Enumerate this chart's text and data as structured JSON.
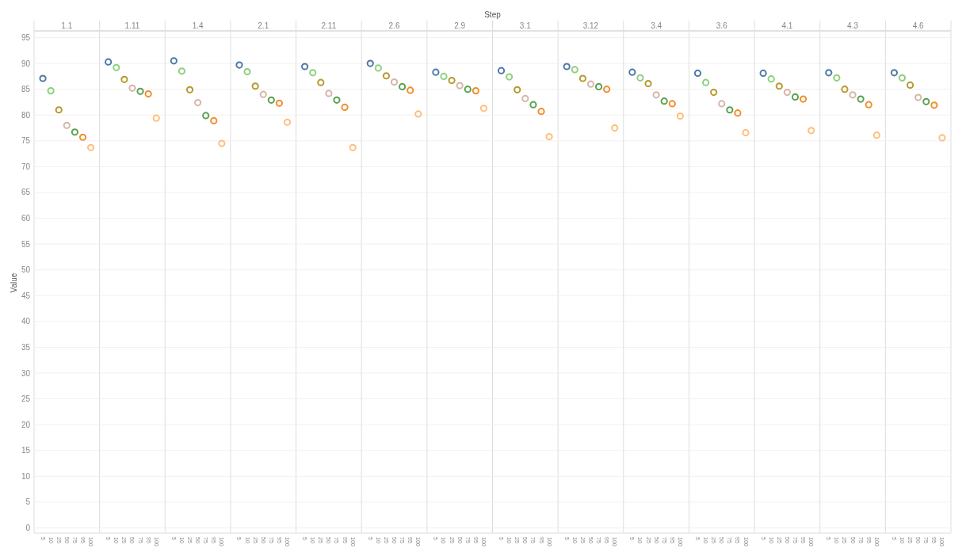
{
  "chart_data": [
    {
      "type": "scatter",
      "title": "1.1",
      "ylabel": "Value",
      "annotations": [
        "Step"
      ],
      "categories": [
        "5",
        "10",
        "25",
        "50",
        "75",
        "95",
        "100"
      ],
      "values": [
        87.1,
        84.7,
        81.0,
        78.0,
        76.7,
        75.7,
        73.7
      ],
      "colors": [
        "#4e79a7",
        "#8cd17d",
        "#b6992d",
        "#d7b5a6",
        "#59a14f",
        "#f28e2b",
        "#ffbe7d"
      ],
      "ylim": [
        -1,
        96
      ],
      "yticks": [
        0,
        5,
        10,
        15,
        20,
        25,
        30,
        35,
        40,
        45,
        50,
        55,
        60,
        65,
        70,
        75,
        80,
        85,
        90,
        95
      ],
      "grid": "y",
      "marker": "circle"
    },
    {
      "type": "scatter",
      "title": "1.11",
      "categories": [
        "5",
        "10",
        "25",
        "50",
        "75",
        "95",
        "100"
      ],
      "values": [
        90.3,
        89.2,
        86.9,
        85.2,
        84.6,
        84.1,
        79.4
      ],
      "colors": [
        "#4e79a7",
        "#8cd17d",
        "#b6992d",
        "#d7b5a6",
        "#59a14f",
        "#f28e2b",
        "#ffbe7d"
      ],
      "ylim": [
        -1,
        96
      ],
      "yticks": [
        0,
        5,
        10,
        15,
        20,
        25,
        30,
        35,
        40,
        45,
        50,
        55,
        60,
        65,
        70,
        75,
        80,
        85,
        90,
        95
      ],
      "grid": "y",
      "marker": "circle",
      "tick_labels": "x"
    },
    {
      "type": "scatter",
      "title": "1.4",
      "categories": [
        "5",
        "10",
        "25",
        "50",
        "75",
        "95",
        "100"
      ],
      "values": [
        90.5,
        88.5,
        84.9,
        82.4,
        79.9,
        78.9,
        74.5
      ],
      "colors": [
        "#4e79a7",
        "#8cd17d",
        "#b6992d",
        "#d7b5a6",
        "#59a14f",
        "#f28e2b",
        "#ffbe7d"
      ],
      "ylim": [
        -1,
        96
      ],
      "yticks": [
        0,
        5,
        10,
        15,
        20,
        25,
        30,
        35,
        40,
        45,
        50,
        55,
        60,
        65,
        70,
        75,
        80,
        85,
        90,
        95
      ],
      "grid": "y",
      "marker": "circle",
      "tick_labels": "x"
    },
    {
      "type": "scatter",
      "title": "2.1",
      "categories": [
        "5",
        "10",
        "25",
        "50",
        "75",
        "95",
        "100"
      ],
      "values": [
        89.7,
        88.4,
        85.6,
        84.0,
        82.9,
        82.3,
        78.6
      ],
      "colors": [
        "#4e79a7",
        "#8cd17d",
        "#b6992d",
        "#d7b5a6",
        "#59a14f",
        "#f28e2b",
        "#ffbe7d"
      ],
      "ylim": [
        -1,
        96
      ],
      "yticks": [
        0,
        5,
        10,
        15,
        20,
        25,
        30,
        35,
        40,
        45,
        50,
        55,
        60,
        65,
        70,
        75,
        80,
        85,
        90,
        95
      ],
      "grid": "y",
      "marker": "circle",
      "tick_labels": "x"
    },
    {
      "type": "scatter",
      "title": "2.11",
      "categories": [
        "5",
        "10",
        "25",
        "50",
        "75",
        "95",
        "100"
      ],
      "values": [
        89.4,
        88.2,
        86.3,
        84.2,
        82.9,
        81.5,
        73.7
      ],
      "colors": [
        "#4e79a7",
        "#8cd17d",
        "#b6992d",
        "#d7b5a6",
        "#59a14f",
        "#f28e2b",
        "#ffbe7d"
      ],
      "ylim": [
        -1,
        96
      ],
      "yticks": [
        0,
        5,
        10,
        15,
        20,
        25,
        30,
        35,
        40,
        45,
        50,
        55,
        60,
        65,
        70,
        75,
        80,
        85,
        90,
        95
      ],
      "grid": "y",
      "marker": "circle",
      "tick_labels": "x"
    },
    {
      "type": "scatter",
      "title": "2.6",
      "categories": [
        "5",
        "10",
        "25",
        "50",
        "75",
        "95",
        "100"
      ],
      "values": [
        90.0,
        89.1,
        87.6,
        86.4,
        85.5,
        84.8,
        80.2
      ],
      "colors": [
        "#4e79a7",
        "#8cd17d",
        "#b6992d",
        "#d7b5a6",
        "#59a14f",
        "#f28e2b",
        "#ffbe7d"
      ],
      "ylim": [
        -1,
        96
      ],
      "yticks": [
        0,
        5,
        10,
        15,
        20,
        25,
        30,
        35,
        40,
        45,
        50,
        55,
        60,
        65,
        70,
        75,
        80,
        85,
        90,
        95
      ],
      "grid": "y",
      "marker": "circle",
      "tick_labels": "x"
    },
    {
      "type": "scatter",
      "title": "2.9",
      "categories": [
        "5",
        "10",
        "25",
        "50",
        "75",
        "95",
        "100"
      ],
      "values": [
        88.3,
        87.5,
        86.7,
        85.7,
        85.0,
        84.7,
        81.3
      ],
      "colors": [
        "#4e79a7",
        "#8cd17d",
        "#b6992d",
        "#d7b5a6",
        "#59a14f",
        "#f28e2b",
        "#ffbe7d"
      ],
      "ylim": [
        -1,
        96
      ],
      "yticks": [
        0,
        5,
        10,
        15,
        20,
        25,
        30,
        35,
        40,
        45,
        50,
        55,
        60,
        65,
        70,
        75,
        80,
        85,
        90,
        95
      ],
      "grid": "y",
      "marker": "circle",
      "tick_labels": "x"
    },
    {
      "type": "scatter",
      "title": "3.1",
      "categories": [
        "5",
        "10",
        "25",
        "50",
        "75",
        "95",
        "100"
      ],
      "values": [
        88.6,
        87.4,
        84.9,
        83.2,
        82.0,
        80.7,
        75.8
      ],
      "colors": [
        "#4e79a7",
        "#8cd17d",
        "#b6992d",
        "#d7b5a6",
        "#59a14f",
        "#f28e2b",
        "#ffbe7d"
      ],
      "ylim": [
        -1,
        96
      ],
      "yticks": [
        0,
        5,
        10,
        15,
        20,
        25,
        30,
        35,
        40,
        45,
        50,
        55,
        60,
        65,
        70,
        75,
        80,
        85,
        90,
        95
      ],
      "grid": "y",
      "marker": "circle",
      "tick_labels": "x"
    },
    {
      "type": "scatter",
      "title": "3.12",
      "categories": [
        "5",
        "10",
        "25",
        "50",
        "75",
        "95",
        "100"
      ],
      "values": [
        89.4,
        88.8,
        87.1,
        86.0,
        85.5,
        85.0,
        77.5
      ],
      "colors": [
        "#4e79a7",
        "#8cd17d",
        "#b6992d",
        "#d7b5a6",
        "#59a14f",
        "#f28e2b",
        "#ffbe7d"
      ],
      "ylim": [
        -1,
        96
      ],
      "yticks": [
        0,
        5,
        10,
        15,
        20,
        25,
        30,
        35,
        40,
        45,
        50,
        55,
        60,
        65,
        70,
        75,
        80,
        85,
        90,
        95
      ],
      "grid": "y",
      "marker": "circle",
      "tick_labels": "x"
    },
    {
      "type": "scatter",
      "title": "3.4",
      "categories": [
        "5",
        "10",
        "25",
        "50",
        "75",
        "95",
        "100"
      ],
      "values": [
        88.3,
        87.2,
        86.1,
        83.9,
        82.7,
        82.2,
        79.8
      ],
      "colors": [
        "#4e79a7",
        "#8cd17d",
        "#b6992d",
        "#d7b5a6",
        "#59a14f",
        "#f28e2b",
        "#ffbe7d"
      ],
      "ylim": [
        -1,
        96
      ],
      "yticks": [
        0,
        5,
        10,
        15,
        20,
        25,
        30,
        35,
        40,
        45,
        50,
        55,
        60,
        65,
        70,
        75,
        80,
        85,
        90,
        95
      ],
      "grid": "y",
      "marker": "circle",
      "tick_labels": "x"
    },
    {
      "type": "scatter",
      "title": "3.6",
      "categories": [
        "5",
        "10",
        "25",
        "50",
        "75",
        "95",
        "100"
      ],
      "values": [
        88.1,
        86.3,
        84.4,
        82.2,
        81.0,
        80.4,
        76.6
      ],
      "colors": [
        "#4e79a7",
        "#8cd17d",
        "#b6992d",
        "#d7b5a6",
        "#59a14f",
        "#f28e2b",
        "#ffbe7d"
      ],
      "ylim": [
        -1,
        96
      ],
      "yticks": [
        0,
        5,
        10,
        15,
        20,
        25,
        30,
        35,
        40,
        45,
        50,
        55,
        60,
        65,
        70,
        75,
        80,
        85,
        90,
        95
      ],
      "grid": "y",
      "marker": "circle",
      "tick_labels": "x"
    },
    {
      "type": "scatter",
      "title": "4.1",
      "categories": [
        "5",
        "10",
        "25",
        "50",
        "75",
        "95",
        "100"
      ],
      "values": [
        88.1,
        87.0,
        85.6,
        84.4,
        83.5,
        83.1,
        77.0
      ],
      "colors": [
        "#4e79a7",
        "#8cd17d",
        "#b6992d",
        "#d7b5a6",
        "#59a14f",
        "#f28e2b",
        "#ffbe7d"
      ],
      "ylim": [
        -1,
        96
      ],
      "yticks": [
        0,
        5,
        10,
        15,
        20,
        25,
        30,
        35,
        40,
        45,
        50,
        55,
        60,
        65,
        70,
        75,
        80,
        85,
        90,
        95
      ],
      "grid": "y",
      "marker": "circle",
      "tick_labels": "x"
    },
    {
      "type": "scatter",
      "title": "4.3",
      "categories": [
        "5",
        "10",
        "25",
        "50",
        "75",
        "95",
        "100"
      ],
      "values": [
        88.2,
        87.2,
        85.0,
        83.9,
        83.1,
        82.0,
        76.1
      ],
      "colors": [
        "#4e79a7",
        "#8cd17d",
        "#b6992d",
        "#d7b5a6",
        "#59a14f",
        "#f28e2b",
        "#ffbe7d"
      ],
      "ylim": [
        -1,
        96
      ],
      "yticks": [
        0,
        5,
        10,
        15,
        20,
        25,
        30,
        35,
        40,
        45,
        50,
        55,
        60,
        65,
        70,
        75,
        80,
        85,
        90,
        95
      ],
      "grid": "y",
      "marker": "circle",
      "tick_labels": "x"
    },
    {
      "type": "scatter",
      "title": "4.6",
      "categories": [
        "5",
        "10",
        "25",
        "50",
        "75",
        "95",
        "100"
      ],
      "values": [
        88.2,
        87.2,
        85.8,
        83.4,
        82.6,
        81.9,
        75.6
      ],
      "colors": [
        "#4e79a7",
        "#8cd17d",
        "#b6992d",
        "#d7b5a6",
        "#59a14f",
        "#f28e2b",
        "#ffbe7d"
      ],
      "ylim": [
        -1,
        96
      ],
      "yticks": [
        0,
        5,
        10,
        15,
        20,
        25,
        30,
        35,
        40,
        45,
        50,
        55,
        60,
        65,
        70,
        75,
        80,
        85,
        90,
        95
      ],
      "grid": "y",
      "marker": "circle",
      "tick_labels": "x"
    }
  ]
}
